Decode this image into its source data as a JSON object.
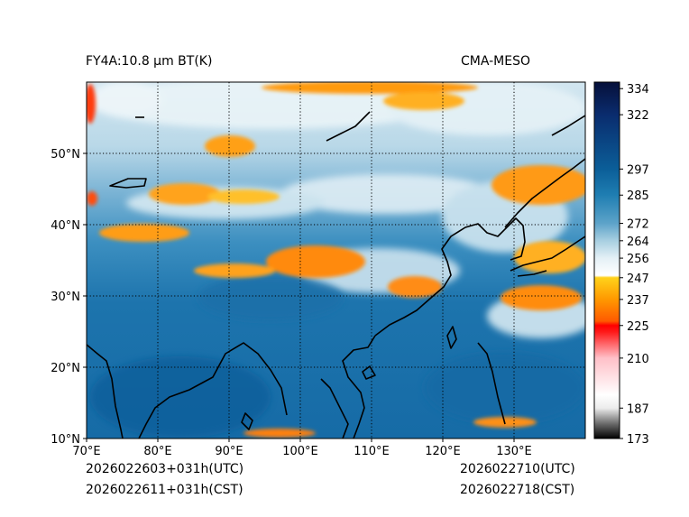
{
  "header": {
    "left_title": "FY4A:10.8 µm BT(K)",
    "right_title": "CMA-MESO"
  },
  "footer": {
    "init_utc": "2026022603+031h(UTC)",
    "init_cst": "2026022611+031h(CST)",
    "valid_utc": "2026022710(UTC)",
    "valid_cst": "2026022718(CST)"
  },
  "map": {
    "lon_range": [
      70,
      140
    ],
    "lat_range": [
      10,
      60
    ],
    "lon_labels": [
      "70°E",
      "80°E",
      "90°E",
      "100°E",
      "110°E",
      "120°E",
      "130°E"
    ],
    "lat_labels": [
      "10°N",
      "20°N",
      "30°N",
      "40°N",
      "50°N"
    ],
    "lon_grid": [
      80,
      90,
      100,
      110,
      120,
      130
    ],
    "lat_grid": [
      20,
      30,
      40,
      50
    ]
  },
  "colorbar": {
    "vmin": 173,
    "vmax": 337,
    "tick_values": [
      334,
      322,
      297,
      285,
      272,
      264,
      256,
      247,
      237,
      225,
      210,
      187,
      173
    ],
    "tick_labels": [
      "334",
      "322",
      "297",
      "285",
      "272",
      "264",
      "256",
      "247",
      "237",
      "225",
      "210",
      "187",
      "173"
    ],
    "stops": [
      {
        "value": 173,
        "color": "#000000"
      },
      {
        "value": 180,
        "color": "#6e6e6e"
      },
      {
        "value": 187,
        "color": "#ececec"
      },
      {
        "value": 193,
        "color": "#ffffff"
      },
      {
        "value": 210,
        "color": "#ffc0c8"
      },
      {
        "value": 222,
        "color": "#ff1a1a"
      },
      {
        "value": 225,
        "color": "#ff0000"
      },
      {
        "value": 227,
        "color": "#ff5a00"
      },
      {
        "value": 237,
        "color": "#ff9800"
      },
      {
        "value": 247,
        "color": "#ffd21a"
      },
      {
        "value": 248,
        "color": "#ffffff"
      },
      {
        "value": 256,
        "color": "#e4f0f6"
      },
      {
        "value": 264,
        "color": "#a8cfe1"
      },
      {
        "value": 272,
        "color": "#5da3c9"
      },
      {
        "value": 285,
        "color": "#1f7eb2"
      },
      {
        "value": 297,
        "color": "#0b5e98"
      },
      {
        "value": 322,
        "color": "#0a2c6e"
      },
      {
        "value": 337,
        "color": "#06103a"
      }
    ]
  }
}
